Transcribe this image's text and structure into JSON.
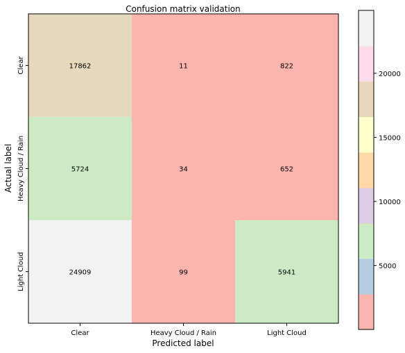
{
  "chart_data": {
    "type": "heatmap",
    "title": "Confusion matrix validation",
    "xlabel": "Predicted label",
    "ylabel": "Actual label",
    "x_categories": [
      "Clear",
      "Heavy Cloud / Rain",
      "Light Cloud"
    ],
    "y_categories": [
      "Clear",
      "Heavy Cloud / Rain",
      "Light Cloud"
    ],
    "values": [
      [
        17862,
        11,
        822
      ],
      [
        5724,
        34,
        652
      ],
      [
        24909,
        99,
        5941
      ]
    ],
    "value_labels": [
      [
        "17862",
        "11",
        "822"
      ],
      [
        "5724",
        "34",
        "652"
      ],
      [
        "24909",
        "99",
        "5941"
      ]
    ],
    "colormap": "Pastel1",
    "colormap_colors": [
      "#fbb4ae",
      "#b3cde3",
      "#ccebc5",
      "#decbe4",
      "#fed9a6",
      "#ffffcc",
      "#e5d8bd",
      "#fddaec",
      "#f2f2f2"
    ],
    "color_range": [
      11,
      24909
    ],
    "colorbar_ticks": [
      5000,
      10000,
      15000,
      20000
    ],
    "colorbar_tick_labels": [
      "5000",
      "10000",
      "15000",
      "20000"
    ],
    "colorbar_position": "right"
  }
}
